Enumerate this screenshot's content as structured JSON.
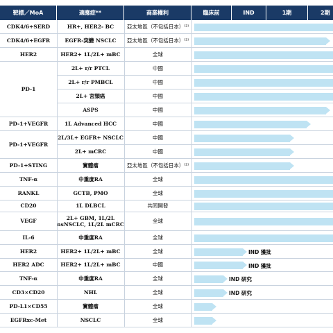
{
  "headers": [
    "靶標／MoA",
    "適應症**",
    "商業權利",
    "臨床前",
    "IND",
    "1期",
    "2期"
  ],
  "rows": [
    {
      "target": "CDK4/6+SERD",
      "indication": "HR+, HER2- BC",
      "rights": "亞太地區（不包括日本）⁽²⁾",
      "progress": 1.0,
      "status": ""
    },
    {
      "target": "CDK4/6+EGFR",
      "indication": "EGFR-突變 NSCLC",
      "rights": "亞太地區（不包括日本）⁽²⁾",
      "progress": 0.98,
      "status": ""
    },
    {
      "target": "HER2",
      "indication": "HER2+ 1L/2L+ mBC",
      "rights": "全球",
      "progress": 1.0,
      "status": ""
    },
    {
      "target": "PD-1",
      "indication": "2L+ r/r PTCL",
      "rights": "中國",
      "progress": 1.0,
      "status": ""
    },
    {
      "target": "",
      "indication": "2L+ r/r PMBCL",
      "rights": "中國",
      "progress": 1.0,
      "status": ""
    },
    {
      "target": "",
      "indication": "2L+ 宮頸癌",
      "rights": "中國",
      "progress": 1.0,
      "status": ""
    },
    {
      "target": "",
      "indication": "ASPS",
      "rights": "中國",
      "progress": 0.98,
      "status": ""
    },
    {
      "target": "PD-1+VEGFR",
      "indication": "1L Advanced HCC",
      "rights": "中國",
      "progress": 0.84,
      "status": ""
    },
    {
      "target": "PD-1+VEGFR",
      "indication": "2L/3L+ EGFR+ NSCLC",
      "rights": "中國",
      "progress": 0.72,
      "status": ""
    },
    {
      "target": "",
      "indication": "2L+ mCRC",
      "rights": "中國",
      "progress": 0.72,
      "status": ""
    },
    {
      "target": "PD-1+STING",
      "indication": "實體瘤",
      "rights": "亞太地區（不包括日本）⁽²⁾",
      "progress": 0.72,
      "status": ""
    },
    {
      "target": "TNF-α",
      "indication": "中重度RA",
      "rights": "全球",
      "progress": 1.0,
      "status": ""
    },
    {
      "target": "RANKL",
      "indication": "GCTB, PMO",
      "rights": "全球",
      "progress": 1.0,
      "status": ""
    },
    {
      "target": "CD20",
      "indication": "1L DLBCL",
      "rights": "共同開發",
      "progress": 1.0,
      "status": ""
    },
    {
      "target": "VEGF",
      "indication": "2L+ GBM, 1L/2L nsNSCLC, 1L/2L mCRC",
      "rights": "全球",
      "progress": 1.0,
      "status": ""
    },
    {
      "target": "IL-6",
      "indication": "中重度RA",
      "rights": "全球",
      "progress": 1.0,
      "status": ""
    },
    {
      "target": "HER2",
      "indication": "HER2+ 1L/2L+ mBC",
      "rights": "全球",
      "progress": 0.38,
      "status": "IND 獲批"
    },
    {
      "target": "HER2 ADC",
      "indication": "HER2+ 1L/2L+ mBC",
      "rights": "中國",
      "progress": 0.38,
      "status": "IND 獲批"
    },
    {
      "target": "TNF-α",
      "indication": "中重度RA",
      "rights": "全球",
      "progress": 0.24,
      "status": "IND 研究"
    },
    {
      "target": "CD3×CD20",
      "indication": "NHL",
      "rights": "全球",
      "progress": 0.24,
      "status": "IND 研究"
    },
    {
      "target": "PD-L1×CD55",
      "indication": "實體瘤",
      "rights": "全球",
      "progress": 0.16,
      "status": ""
    },
    {
      "target": "EGFRxc-Met",
      "indication": "NSCLC",
      "rights": "全球",
      "progress": 0.16,
      "status": ""
    }
  ],
  "colors": {
    "header": "#1a3a66",
    "bar": "#bfe3f3",
    "grid": "#c9d3df"
  }
}
